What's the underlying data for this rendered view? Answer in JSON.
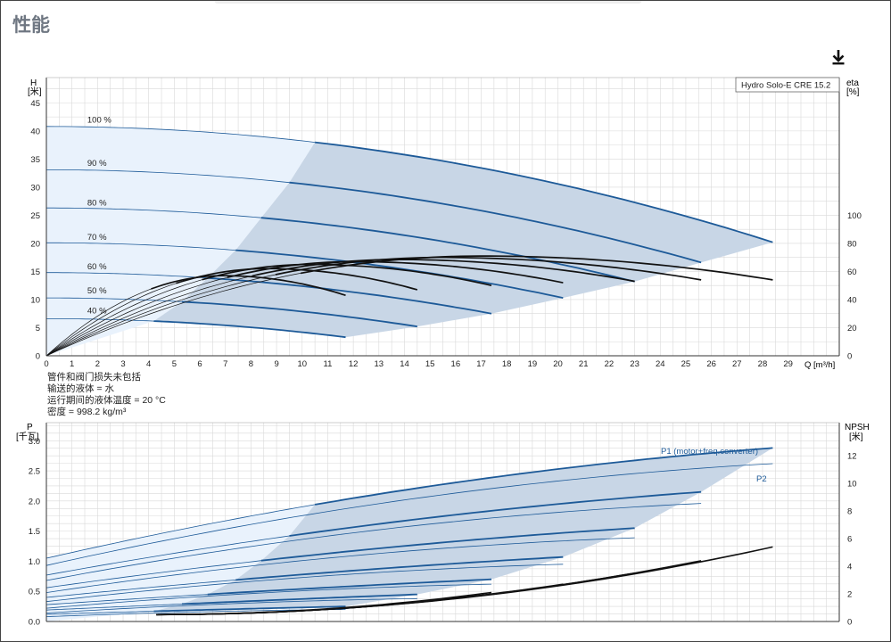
{
  "page": {
    "section_title": "性能",
    "download_icon": "download-icon"
  },
  "colors": {
    "curve_blue": "#1d5a98",
    "envelope_light": "#e9f2fc",
    "envelope_dark": "#c8d6e6",
    "grid": "#d9d9d9",
    "black_curve": "#111111"
  },
  "chart_data": [
    {
      "type": "line",
      "name": "head-eta",
      "legend_box": "Hydro Solo-E CRE 15.2",
      "y_axis_left": {
        "label": "H",
        "unit": "[米]",
        "ticks": [
          0,
          5,
          10,
          15,
          20,
          25,
          30,
          35,
          40,
          45
        ],
        "ylim": [
          0,
          49.5
        ]
      },
      "y_axis_right": {
        "label": "eta",
        "unit": "[%]",
        "ticks": [
          0,
          20,
          40,
          60,
          80,
          100
        ]
      },
      "x_axis": {
        "label": "Q [m³/h]",
        "ticks": [
          0,
          1,
          2,
          3,
          4,
          5,
          6,
          7,
          8,
          9,
          10,
          11,
          12,
          13,
          14,
          15,
          16,
          17,
          18,
          19,
          20,
          21,
          22,
          23,
          24,
          25,
          26,
          27,
          28,
          29
        ],
        "xlim": [
          0,
          31
        ]
      },
      "grid": true,
      "speed_labels": [
        {
          "text": "100 %",
          "q": 1.6,
          "h": 41.5
        },
        {
          "text": "90 %",
          "q": 1.6,
          "h": 33.8
        },
        {
          "text": "80 %",
          "q": 1.6,
          "h": 26.7
        },
        {
          "text": "70 %",
          "q": 1.6,
          "h": 20.6
        },
        {
          "text": "60 %",
          "q": 1.6,
          "h": 15.4
        },
        {
          "text": "50 %",
          "q": 1.6,
          "h": 11.1
        },
        {
          "text": "40 %",
          "q": 1.6,
          "h": 7.5
        }
      ],
      "head_curves": [
        {
          "speed": "100 %",
          "q0": 0,
          "h0": 40.8,
          "q_switch": 10.5,
          "q_end": 28.4,
          "h_end": 20.2
        },
        {
          "speed": "90 %",
          "q0": 0,
          "h0": 33.1,
          "q_switch": 9.5,
          "q_end": 25.6,
          "h_end": 16.6
        },
        {
          "speed": "80 %",
          "q0": 0,
          "h0": 26.3,
          "q_switch": 8.4,
          "q_end": 23.0,
          "h_end": 13.2
        },
        {
          "speed": "70 %",
          "q0": 0,
          "h0": 20.1,
          "q_switch": 7.4,
          "q_end": 20.2,
          "h_end": 10.3
        },
        {
          "speed": "60 %",
          "q0": 0,
          "h0": 14.8,
          "q_switch": 6.3,
          "q_end": 17.4,
          "h_end": 7.5
        },
        {
          "speed": "50 %",
          "q0": 0,
          "h0": 10.3,
          "q_switch": 5.3,
          "q_end": 14.5,
          "h_end": 5.2
        },
        {
          "speed": "40 %",
          "q0": 0,
          "h0": 6.6,
          "q_switch": 4.2,
          "q_end": 11.7,
          "h_end": 3.3
        }
      ],
      "eta_curves": [
        {
          "speed": "100 %",
          "q_peak": 17.0,
          "eta_peak": 71.0,
          "q_end": 28.4,
          "eta_end": 54.0
        },
        {
          "speed": "90 %",
          "q_peak": 15.4,
          "eta_peak": 70.0,
          "q_end": 25.6,
          "eta_end": 54.0
        },
        {
          "speed": "80 %",
          "q_peak": 13.7,
          "eta_peak": 68.5,
          "q_end": 23.0,
          "eta_end": 53.0
        },
        {
          "speed": "70 %",
          "q_peak": 12.0,
          "eta_peak": 67.0,
          "q_end": 20.2,
          "eta_end": 52.0
        },
        {
          "speed": "60 %",
          "q_peak": 10.3,
          "eta_peak": 65.0,
          "q_end": 17.4,
          "eta_end": 50.0
        },
        {
          "speed": "50 %",
          "q_peak": 8.6,
          "eta_peak": 62.0,
          "q_end": 14.5,
          "eta_end": 47.0
        },
        {
          "speed": "40 %",
          "q_peak": 6.9,
          "eta_peak": 57.0,
          "q_end": 11.7,
          "eta_end": 43.0
        }
      ],
      "notes": [
        "管件和阀门损失未包括",
        "输送的液体 = 水",
        "运行期间的液体温度 = 20 °C",
        "密度 = 998.2 kg/m³"
      ]
    },
    {
      "type": "line",
      "name": "power-npsh",
      "y_axis_left": {
        "label": "P",
        "unit": "[千瓦]",
        "ticks": [
          0.0,
          0.5,
          1.0,
          1.5,
          2.0,
          2.5,
          3.0
        ],
        "tick_labels": [
          "0.0",
          "0.5",
          "1.0",
          "1.5",
          "2.0",
          "2.5",
          "3.0"
        ],
        "ylim": [
          0,
          3.3
        ]
      },
      "y_axis_right": {
        "label": "NPSH",
        "unit": "[米]",
        "ticks": [
          0,
          2,
          4,
          6,
          8,
          10,
          12
        ]
      },
      "x_axis": {
        "xlim": [
          0,
          31
        ]
      },
      "grid": true,
      "series_labels": [
        "P1 (motor+freq.converter)",
        "P2"
      ],
      "p1_curves": [
        {
          "speed": "100 %",
          "p0": 1.05,
          "p_switch": 1.94,
          "q_switch": 10.5,
          "q_end": 28.4,
          "p_end": 2.88
        },
        {
          "speed": "90 %",
          "p0": 0.77,
          "p_switch": 1.42,
          "q_switch": 9.5,
          "q_end": 25.6,
          "p_end": 2.15
        },
        {
          "speed": "80 %",
          "p0": 0.56,
          "p_switch": 1.01,
          "q_switch": 8.4,
          "q_end": 23.0,
          "p_end": 1.55
        },
        {
          "speed": "70 %",
          "p0": 0.4,
          "p_switch": 0.69,
          "q_switch": 7.4,
          "q_end": 20.2,
          "p_end": 1.07
        },
        {
          "speed": "60 %",
          "p0": 0.28,
          "p_switch": 0.45,
          "q_switch": 6.3,
          "q_end": 17.4,
          "p_end": 0.7
        },
        {
          "speed": "50 %",
          "p0": 0.19,
          "p_switch": 0.29,
          "q_switch": 5.3,
          "q_end": 14.5,
          "p_end": 0.45
        },
        {
          "speed": "40 %",
          "p0": 0.12,
          "p_switch": 0.17,
          "q_switch": 4.2,
          "q_end": 11.7,
          "p_end": 0.25
        }
      ],
      "p2_curves": [
        {
          "speed": "100 %",
          "p0": 0.93,
          "q_end": 28.4,
          "p_end": 2.62
        },
        {
          "speed": "90 %",
          "p0": 0.68,
          "q_end": 25.6,
          "p_end": 1.96
        },
        {
          "speed": "80 %",
          "p0": 0.48,
          "q_end": 23.0,
          "p_end": 1.39
        },
        {
          "speed": "70 %",
          "p0": 0.33,
          "q_end": 20.2,
          "p_end": 0.95
        },
        {
          "speed": "60 %",
          "p0": 0.22,
          "q_end": 17.4,
          "p_end": 0.62
        },
        {
          "speed": "50 %",
          "p0": 0.14,
          "q_end": 14.5,
          "p_end": 0.38
        },
        {
          "speed": "40 %",
          "p0": 0.08,
          "q_end": 11.7,
          "p_end": 0.2
        }
      ],
      "npsh_curves": [
        {
          "speed": "100 %",
          "q_start": 4.3,
          "q_end": 28.4,
          "npsh_end": 5.4
        },
        {
          "speed": "90 %",
          "q_start": 4.3,
          "q_end": 25.6,
          "npsh_end": 4.4
        },
        {
          "speed": "80 %",
          "q_start": 4.3,
          "q_end": 23.0,
          "npsh_end": 3.5
        },
        {
          "speed": "70 %",
          "q_start": 4.3,
          "q_end": 20.2,
          "npsh_end": 2.7
        },
        {
          "speed": "60 %",
          "q_start": 4.3,
          "q_end": 17.4,
          "npsh_end": 2.1
        }
      ]
    }
  ]
}
